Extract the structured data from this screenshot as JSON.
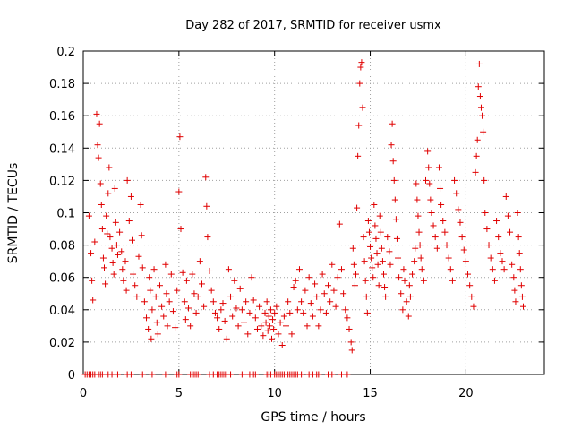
{
  "chart_data": {
    "type": "scatter",
    "title": "Day 282 of 2017, SRMTID for receiver usmx",
    "xlabel": "GPS time / hours",
    "ylabel": "SRMTID / TECUs",
    "xlim": [
      0,
      24.1
    ],
    "ylim": [
      0,
      0.2
    ],
    "xticks": [
      0,
      5,
      10,
      15,
      20
    ],
    "xtick_labels": [
      "0",
      "5",
      "10",
      "15",
      "20"
    ],
    "yticks": [
      0,
      0.02,
      0.04,
      0.06,
      0.08,
      0.1,
      0.12,
      0.14,
      0.16,
      0.18,
      0.2
    ],
    "ytick_labels": [
      "0",
      "0.02",
      "0.04",
      "0.06",
      "0.08",
      "0.1",
      "0.12",
      "0.14",
      "0.16",
      "0.18",
      "0.2"
    ],
    "grid": true,
    "marker": "+",
    "color": "#e00000",
    "series": [
      {
        "name": "SRMTID",
        "points": [
          [
            0.3,
            0.098
          ],
          [
            0.4,
            0.075
          ],
          [
            0.45,
            0.058
          ],
          [
            0.5,
            0.046
          ],
          [
            0.6,
            0.082
          ],
          [
            0.7,
            0.161
          ],
          [
            0.75,
            0.142
          ],
          [
            0.8,
            0.134
          ],
          [
            0.85,
            0.155
          ],
          [
            0.9,
            0.118
          ],
          [
            0.95,
            0.105
          ],
          [
            1.0,
            0.09
          ],
          [
            1.05,
            0.072
          ],
          [
            1.1,
            0.066
          ],
          [
            1.15,
            0.056
          ],
          [
            1.2,
            0.098
          ],
          [
            1.25,
            0.087
          ],
          [
            1.3,
            0.112
          ],
          [
            1.35,
            0.128
          ],
          [
            1.4,
            0.085
          ],
          [
            1.5,
            0.078
          ],
          [
            1.55,
            0.069
          ],
          [
            1.6,
            0.062
          ],
          [
            1.65,
            0.115
          ],
          [
            1.7,
            0.094
          ],
          [
            1.75,
            0.08
          ],
          [
            1.8,
            0.074
          ],
          [
            1.9,
            0.088
          ],
          [
            2.0,
            0.076
          ],
          [
            2.05,
            0.065
          ],
          [
            2.1,
            0.058
          ],
          [
            2.2,
            0.07
          ],
          [
            2.25,
            0.052
          ],
          [
            2.3,
            0.12
          ],
          [
            2.4,
            0.095
          ],
          [
            2.5,
            0.11
          ],
          [
            2.55,
            0.083
          ],
          [
            2.6,
            0.062
          ],
          [
            2.7,
            0.055
          ],
          [
            2.8,
            0.048
          ],
          [
            2.9,
            0.073
          ],
          [
            3.0,
            0.105
          ],
          [
            3.05,
            0.086
          ],
          [
            3.1,
            0.066
          ],
          [
            3.2,
            0.045
          ],
          [
            3.3,
            0.035
          ],
          [
            3.4,
            0.028
          ],
          [
            3.45,
            0.06
          ],
          [
            3.5,
            0.052
          ],
          [
            3.55,
            0.022
          ],
          [
            3.6,
            0.04
          ],
          [
            3.7,
            0.065
          ],
          [
            3.8,
            0.048
          ],
          [
            3.85,
            0.032
          ],
          [
            3.9,
            0.025
          ],
          [
            4.0,
            0.055
          ],
          [
            4.1,
            0.042
          ],
          [
            4.2,
            0.036
          ],
          [
            4.3,
            0.068
          ],
          [
            4.35,
            0.05
          ],
          [
            4.4,
            0.03
          ],
          [
            4.5,
            0.045
          ],
          [
            4.6,
            0.062
          ],
          [
            4.7,
            0.039
          ],
          [
            4.8,
            0.029
          ],
          [
            4.9,
            0.052
          ],
          [
            5.0,
            0.113
          ],
          [
            5.05,
            0.147
          ],
          [
            5.1,
            0.09
          ],
          [
            5.2,
            0.063
          ],
          [
            5.3,
            0.045
          ],
          [
            5.35,
            0.034
          ],
          [
            5.4,
            0.058
          ],
          [
            5.5,
            0.041
          ],
          [
            5.6,
            0.03
          ],
          [
            5.7,
            0.062
          ],
          [
            5.8,
            0.05
          ],
          [
            5.9,
            0.038
          ],
          [
            6.0,
            0.048
          ],
          [
            6.1,
            0.07
          ],
          [
            6.2,
            0.056
          ],
          [
            6.3,
            0.042
          ],
          [
            6.4,
            0.122
          ],
          [
            6.45,
            0.104
          ],
          [
            6.5,
            0.085
          ],
          [
            6.6,
            0.064
          ],
          [
            6.7,
            0.052
          ],
          [
            6.8,
            0.045
          ],
          [
            6.9,
            0.038
          ],
          [
            7.0,
            0.035
          ],
          [
            7.1,
            0.028
          ],
          [
            7.2,
            0.04
          ],
          [
            7.3,
            0.044
          ],
          [
            7.4,
            0.033
          ],
          [
            7.5,
            0.022
          ],
          [
            7.6,
            0.065
          ],
          [
            7.7,
            0.048
          ],
          [
            7.8,
            0.036
          ],
          [
            7.9,
            0.058
          ],
          [
            8.0,
            0.041
          ],
          [
            8.1,
            0.03
          ],
          [
            8.2,
            0.053
          ],
          [
            8.3,
            0.04
          ],
          [
            8.4,
            0.032
          ],
          [
            8.5,
            0.045
          ],
          [
            8.6,
            0.025
          ],
          [
            8.7,
            0.038
          ],
          [
            8.8,
            0.06
          ],
          [
            8.9,
            0.046
          ],
          [
            9.0,
            0.035
          ],
          [
            9.1,
            0.028
          ],
          [
            9.2,
            0.042
          ],
          [
            9.3,
            0.03
          ],
          [
            9.4,
            0.024
          ],
          [
            9.5,
            0.038
          ],
          [
            9.55,
            0.032
          ],
          [
            9.6,
            0.045
          ],
          [
            9.65,
            0.027
          ],
          [
            9.7,
            0.036
          ],
          [
            9.75,
            0.03
          ],
          [
            9.8,
            0.04
          ],
          [
            9.85,
            0.022
          ],
          [
            9.9,
            0.034
          ],
          [
            9.95,
            0.028
          ],
          [
            10.0,
            0.038
          ],
          [
            10.1,
            0.042
          ],
          [
            10.2,
            0.025
          ],
          [
            10.3,
            0.032
          ],
          [
            10.4,
            0.018
          ],
          [
            10.5,
            0.036
          ],
          [
            10.6,
            0.03
          ],
          [
            10.7,
            0.045
          ],
          [
            10.8,
            0.038
          ],
          [
            10.9,
            0.025
          ],
          [
            11.0,
            0.054
          ],
          [
            11.1,
            0.058
          ],
          [
            11.2,
            0.04
          ],
          [
            11.3,
            0.065
          ],
          [
            11.4,
            0.045
          ],
          [
            11.5,
            0.038
          ],
          [
            11.6,
            0.052
          ],
          [
            11.7,
            0.03
          ],
          [
            11.8,
            0.06
          ],
          [
            11.9,
            0.044
          ],
          [
            12.0,
            0.036
          ],
          [
            12.1,
            0.056
          ],
          [
            12.2,
            0.048
          ],
          [
            12.3,
            0.03
          ],
          [
            12.4,
            0.04
          ],
          [
            12.5,
            0.062
          ],
          [
            12.6,
            0.05
          ],
          [
            12.7,
            0.038
          ],
          [
            12.8,
            0.055
          ],
          [
            12.9,
            0.045
          ],
          [
            13.0,
            0.068
          ],
          [
            13.1,
            0.052
          ],
          [
            13.2,
            0.042
          ],
          [
            13.3,
            0.06
          ],
          [
            13.4,
            0.093
          ],
          [
            13.5,
            0.065
          ],
          [
            13.6,
            0.05
          ],
          [
            13.7,
            0.04
          ],
          [
            13.8,
            0.035
          ],
          [
            13.9,
            0.028
          ],
          [
            14.0,
            0.02
          ],
          [
            14.05,
            0.015
          ],
          [
            14.1,
            0.078
          ],
          [
            14.15,
            0.068
          ],
          [
            14.2,
            0.055
          ],
          [
            14.25,
            0.062
          ],
          [
            14.3,
            0.103
          ],
          [
            14.35,
            0.135
          ],
          [
            14.4,
            0.154
          ],
          [
            14.45,
            0.18
          ],
          [
            14.5,
            0.19
          ],
          [
            14.55,
            0.193
          ],
          [
            14.6,
            0.165
          ],
          [
            14.65,
            0.085
          ],
          [
            14.7,
            0.07
          ],
          [
            14.75,
            0.058
          ],
          [
            14.8,
            0.048
          ],
          [
            14.85,
            0.038
          ],
          [
            14.9,
            0.095
          ],
          [
            14.95,
            0.088
          ],
          [
            15.0,
            0.079
          ],
          [
            15.05,
            0.072
          ],
          [
            15.1,
            0.066
          ],
          [
            15.15,
            0.06
          ],
          [
            15.2,
            0.105
          ],
          [
            15.25,
            0.092
          ],
          [
            15.3,
            0.084
          ],
          [
            15.35,
            0.075
          ],
          [
            15.4,
            0.068
          ],
          [
            15.45,
            0.055
          ],
          [
            15.5,
            0.098
          ],
          [
            15.55,
            0.088
          ],
          [
            15.6,
            0.078
          ],
          [
            15.65,
            0.07
          ],
          [
            15.7,
            0.062
          ],
          [
            15.75,
            0.054
          ],
          [
            15.8,
            0.048
          ],
          [
            15.9,
            0.085
          ],
          [
            16.0,
            0.076
          ],
          [
            16.05,
            0.068
          ],
          [
            16.1,
            0.142
          ],
          [
            16.15,
            0.155
          ],
          [
            16.2,
            0.132
          ],
          [
            16.25,
            0.12
          ],
          [
            16.3,
            0.108
          ],
          [
            16.35,
            0.096
          ],
          [
            16.4,
            0.084
          ],
          [
            16.45,
            0.072
          ],
          [
            16.5,
            0.06
          ],
          [
            16.6,
            0.05
          ],
          [
            16.7,
            0.04
          ],
          [
            16.75,
            0.065
          ],
          [
            16.8,
            0.058
          ],
          [
            16.9,
            0.045
          ],
          [
            17.0,
            0.036
          ],
          [
            17.05,
            0.055
          ],
          [
            17.1,
            0.048
          ],
          [
            17.2,
            0.062
          ],
          [
            17.3,
            0.07
          ],
          [
            17.35,
            0.078
          ],
          [
            17.4,
            0.118
          ],
          [
            17.45,
            0.108
          ],
          [
            17.5,
            0.098
          ],
          [
            17.55,
            0.088
          ],
          [
            17.6,
            0.08
          ],
          [
            17.65,
            0.072
          ],
          [
            17.7,
            0.065
          ],
          [
            17.8,
            0.058
          ],
          [
            17.9,
            0.12
          ],
          [
            18.0,
            0.138
          ],
          [
            18.05,
            0.128
          ],
          [
            18.1,
            0.118
          ],
          [
            18.15,
            0.108
          ],
          [
            18.2,
            0.1
          ],
          [
            18.3,
            0.092
          ],
          [
            18.4,
            0.085
          ],
          [
            18.5,
            0.078
          ],
          [
            18.6,
            0.128
          ],
          [
            18.65,
            0.115
          ],
          [
            18.7,
            0.105
          ],
          [
            18.8,
            0.095
          ],
          [
            18.9,
            0.088
          ],
          [
            19.0,
            0.08
          ],
          [
            19.1,
            0.072
          ],
          [
            19.2,
            0.065
          ],
          [
            19.3,
            0.058
          ],
          [
            19.4,
            0.12
          ],
          [
            19.5,
            0.112
          ],
          [
            19.6,
            0.102
          ],
          [
            19.7,
            0.094
          ],
          [
            19.8,
            0.085
          ],
          [
            19.9,
            0.077
          ],
          [
            20.0,
            0.07
          ],
          [
            20.1,
            0.062
          ],
          [
            20.2,
            0.055
          ],
          [
            20.3,
            0.048
          ],
          [
            20.4,
            0.042
          ],
          [
            20.5,
            0.125
          ],
          [
            20.55,
            0.135
          ],
          [
            20.6,
            0.145
          ],
          [
            20.65,
            0.178
          ],
          [
            20.7,
            0.192
          ],
          [
            20.75,
            0.172
          ],
          [
            20.8,
            0.165
          ],
          [
            20.85,
            0.16
          ],
          [
            20.9,
            0.15
          ],
          [
            20.95,
            0.12
          ],
          [
            21.0,
            0.1
          ],
          [
            21.1,
            0.09
          ],
          [
            21.2,
            0.08
          ],
          [
            21.3,
            0.072
          ],
          [
            21.4,
            0.065
          ],
          [
            21.5,
            0.058
          ],
          [
            21.6,
            0.095
          ],
          [
            21.7,
            0.085
          ],
          [
            21.8,
            0.075
          ],
          [
            21.9,
            0.07
          ],
          [
            22.0,
            0.065
          ],
          [
            22.1,
            0.11
          ],
          [
            22.2,
            0.098
          ],
          [
            22.3,
            0.088
          ],
          [
            22.4,
            0.068
          ],
          [
            22.5,
            0.06
          ],
          [
            22.55,
            0.052
          ],
          [
            22.6,
            0.045
          ],
          [
            22.7,
            0.1
          ],
          [
            22.75,
            0.085
          ],
          [
            22.8,
            0.075
          ],
          [
            22.85,
            0.065
          ],
          [
            22.9,
            0.055
          ],
          [
            22.95,
            0.048
          ],
          [
            23.0,
            0.042
          ]
        ],
        "zero_points": [
          0.1,
          0.2,
          0.3,
          0.4,
          0.5,
          0.6,
          0.8,
          0.9,
          1.0,
          1.3,
          1.5,
          1.8,
          2.3,
          2.5,
          3.1,
          3.6,
          4.3,
          4.9,
          5.0,
          5.6,
          5.7,
          5.8,
          5.9,
          6.0,
          6.6,
          6.8,
          7.0,
          7.1,
          7.2,
          7.3,
          7.4,
          7.5,
          7.7,
          8.3,
          8.4,
          8.7,
          8.9,
          9.0,
          9.6,
          9.7,
          9.8,
          10.0,
          10.1,
          10.2,
          10.3,
          10.4,
          10.5,
          10.6,
          10.7,
          10.8,
          10.9,
          11.0,
          11.1,
          11.2,
          11.4,
          11.8,
          12.0,
          12.2,
          12.3,
          12.8,
          13.0,
          13.5,
          13.8
        ]
      }
    ]
  }
}
